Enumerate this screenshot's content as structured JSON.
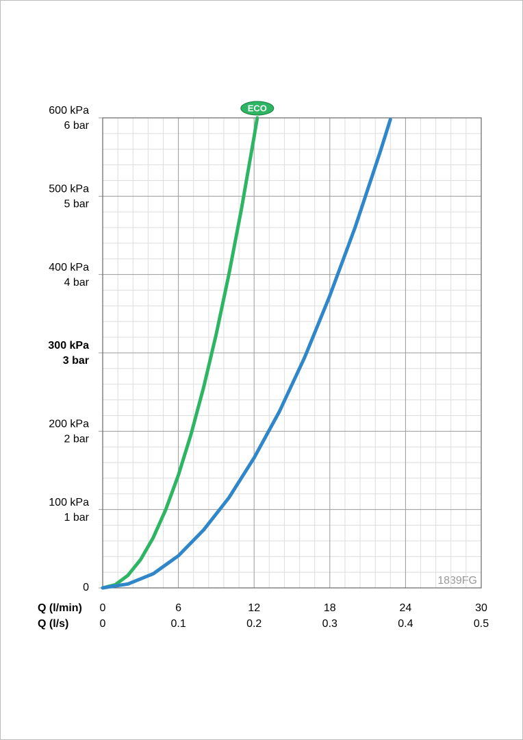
{
  "chart_data": {
    "type": "line",
    "x_label": "Q (l/min)",
    "x2_label": "Q (l/s)",
    "xlim": [
      0,
      30
    ],
    "xticks": [
      0,
      6,
      12,
      18,
      24,
      30
    ],
    "x2lim": [
      0,
      0.5
    ],
    "x2ticks": [
      0,
      0.1,
      0.2,
      0.3,
      0.4,
      0.5
    ],
    "ylim": [
      0,
      600
    ],
    "yticks": [
      0,
      {
        "value": 100,
        "label": "100 kPa"
      },
      {
        "value": 200,
        "label": "200 kPa"
      },
      {
        "value": 300,
        "label": "300 kPa"
      },
      {
        "value": 400,
        "label": "400 kPa"
      },
      {
        "value": 500,
        "label": "500 kPa"
      },
      {
        "value": 600,
        "label": "600 kPa"
      }
    ],
    "y2lim": [
      0,
      6
    ],
    "y2ticks": [
      {
        "value": 1,
        "label": "1 bar"
      },
      {
        "value": 2,
        "label": "2 bar"
      },
      {
        "value": 3,
        "label": "3 bar"
      },
      {
        "value": 4,
        "label": "4 bar"
      },
      {
        "value": 5,
        "label": "5 bar"
      },
      {
        "value": 6,
        "label": "6 bar"
      }
    ],
    "bold_ytick_value": 300,
    "grid": true,
    "watermark": "1839FG",
    "series": [
      {
        "name": "ECO",
        "color": "#2db563",
        "x": [
          0,
          1,
          2,
          3,
          4,
          5,
          6,
          7,
          8,
          9,
          10,
          11,
          12,
          12.25
        ],
        "values": [
          0,
          4,
          16,
          36,
          64,
          100,
          144,
          196,
          256,
          324,
          400,
          484,
          576,
          600
        ]
      },
      {
        "color": "#2f86c8",
        "x": [
          0,
          2,
          4,
          6,
          8,
          10,
          12,
          14,
          16,
          18,
          20,
          22,
          22.8
        ],
        "values": [
          0,
          5,
          18,
          41,
          74,
          115,
          166,
          225,
          294,
          373,
          460,
          557,
          598
        ]
      }
    ]
  }
}
